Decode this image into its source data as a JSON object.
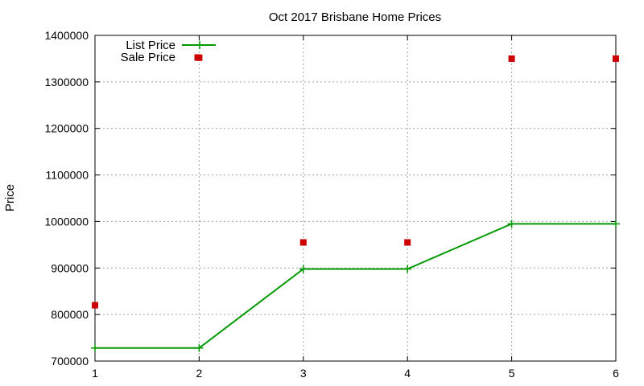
{
  "chart_data": {
    "type": "line",
    "title": "Oct 2017 Brisbane Home Prices",
    "xlabel": "",
    "ylabel": "Price",
    "x": [
      1,
      2,
      3,
      4,
      5,
      6
    ],
    "xlim": [
      1,
      6
    ],
    "ylim": [
      700000,
      1400000
    ],
    "xticks": [
      "1",
      "2",
      "3",
      "4",
      "5",
      "6"
    ],
    "yticks": [
      "700000",
      "800000",
      "900000",
      "1000000",
      "1100000",
      "1200000",
      "1300000",
      "1400000"
    ],
    "grid": true,
    "legend_position": "top-left",
    "series": [
      {
        "name": "List Price",
        "style": "line-with-plus-markers",
        "color": "#009900",
        "values": [
          728000,
          728000,
          898000,
          898000,
          995000,
          995000
        ]
      },
      {
        "name": "Sale Price",
        "style": "square-markers",
        "color": "#cc0000",
        "values": [
          820000,
          1352000,
          955000,
          955000,
          1350000,
          1350000
        ]
      }
    ]
  }
}
